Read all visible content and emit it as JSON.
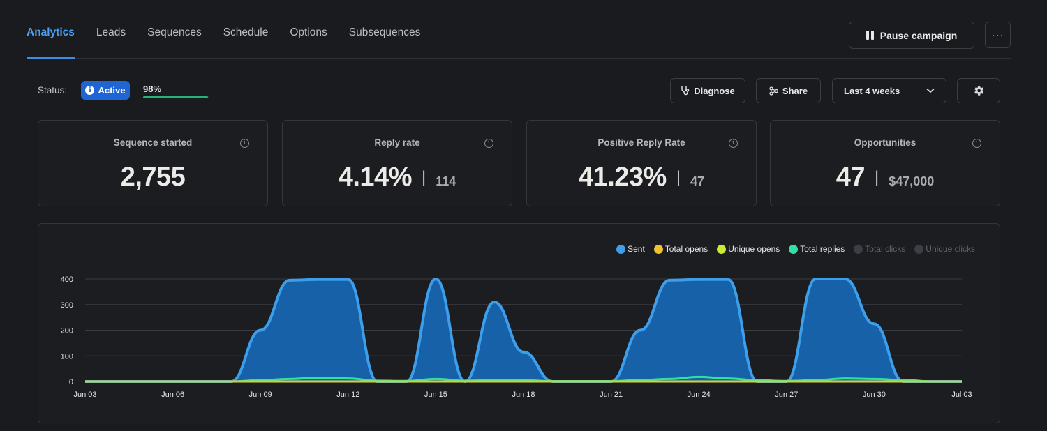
{
  "nav": {
    "tabs": [
      {
        "label": "Analytics",
        "active": true
      },
      {
        "label": "Leads",
        "active": false
      },
      {
        "label": "Sequences",
        "active": false
      },
      {
        "label": "Schedule",
        "active": false
      },
      {
        "label": "Options",
        "active": false
      },
      {
        "label": "Subsequences",
        "active": false
      }
    ],
    "pause_label": "Pause campaign",
    "more_label": "···"
  },
  "status": {
    "label": "Status:",
    "badge": "Active",
    "badge_icon": "info-icon",
    "progress_text": "98%",
    "progress_value": 0.98
  },
  "toolbar": {
    "diagnose_label": "Diagnose",
    "share_label": "Share",
    "range_label": "Last 4 weeks",
    "settings_icon": "gear-icon"
  },
  "metrics": [
    {
      "title": "Sequence started",
      "value": "2,755",
      "secondary": ""
    },
    {
      "title": "Reply rate",
      "value": "4.14%",
      "secondary": "114"
    },
    {
      "title": "Positive Reply Rate",
      "value": "41.23%",
      "secondary": "47"
    },
    {
      "title": "Opportunities",
      "value": "47",
      "secondary": "$47,000"
    }
  ],
  "colors": {
    "sent": "#3d9eeb",
    "sent_fill": "#1765b0",
    "total_opens": "#f0c232",
    "unique_opens": "#c7ec31",
    "total_replies": "#32e0a3",
    "disabled": "#3b3e44",
    "accent": "#4f9ff2"
  },
  "chart_data": {
    "type": "area",
    "x": [
      "Jun 03",
      "Jun 04",
      "Jun 05",
      "Jun 06",
      "Jun 07",
      "Jun 08",
      "Jun 09",
      "Jun 10",
      "Jun 11",
      "Jun 12",
      "Jun 13",
      "Jun 14",
      "Jun 15",
      "Jun 16",
      "Jun 17",
      "Jun 18",
      "Jun 19",
      "Jun 20",
      "Jun 21",
      "Jun 22",
      "Jun 23",
      "Jun 24",
      "Jun 25",
      "Jun 26",
      "Jun 27",
      "Jun 28",
      "Jun 29",
      "Jun 30",
      "Jul 01",
      "Jul 02",
      "Jul 03"
    ],
    "xticks": [
      "Jun 03",
      "Jun 06",
      "Jun 09",
      "Jun 12",
      "Jun 15",
      "Jun 18",
      "Jun 21",
      "Jun 24",
      "Jun 27",
      "Jun 30",
      "Jul 03"
    ],
    "yticks": [
      0,
      100,
      200,
      300,
      400
    ],
    "ylim": [
      0,
      400
    ],
    "legend": [
      {
        "name": "Sent",
        "enabled": true
      },
      {
        "name": "Total opens",
        "enabled": true
      },
      {
        "name": "Unique opens",
        "enabled": true
      },
      {
        "name": "Total replies",
        "enabled": true
      },
      {
        "name": "Total clicks",
        "enabled": false
      },
      {
        "name": "Unique clicks",
        "enabled": false
      }
    ],
    "series": [
      {
        "name": "Sent",
        "values": [
          0,
          0,
          0,
          0,
          0,
          0,
          200,
          395,
          398,
          398,
          0,
          0,
          400,
          0,
          310,
          115,
          0,
          0,
          0,
          200,
          395,
          398,
          398,
          0,
          0,
          400,
          400,
          225,
          0,
          0,
          0
        ]
      },
      {
        "name": "Total opens",
        "values": [
          0,
          0,
          0,
          0,
          0,
          0,
          0,
          0,
          0,
          0,
          0,
          0,
          0,
          0,
          0,
          0,
          0,
          0,
          0,
          0,
          0,
          0,
          0,
          0,
          0,
          0,
          0,
          0,
          0,
          0,
          0
        ]
      },
      {
        "name": "Unique opens",
        "values": [
          0,
          0,
          0,
          0,
          0,
          0,
          0,
          0,
          0,
          0,
          0,
          0,
          0,
          0,
          0,
          0,
          0,
          0,
          0,
          0,
          0,
          0,
          0,
          0,
          0,
          0,
          0,
          0,
          0,
          0,
          0
        ]
      },
      {
        "name": "Total replies",
        "values": [
          0,
          0,
          0,
          0,
          0,
          0,
          5,
          10,
          15,
          12,
          3,
          2,
          10,
          3,
          6,
          5,
          1,
          1,
          1,
          6,
          10,
          18,
          12,
          5,
          2,
          5,
          12,
          10,
          6,
          0,
          0
        ]
      }
    ]
  }
}
